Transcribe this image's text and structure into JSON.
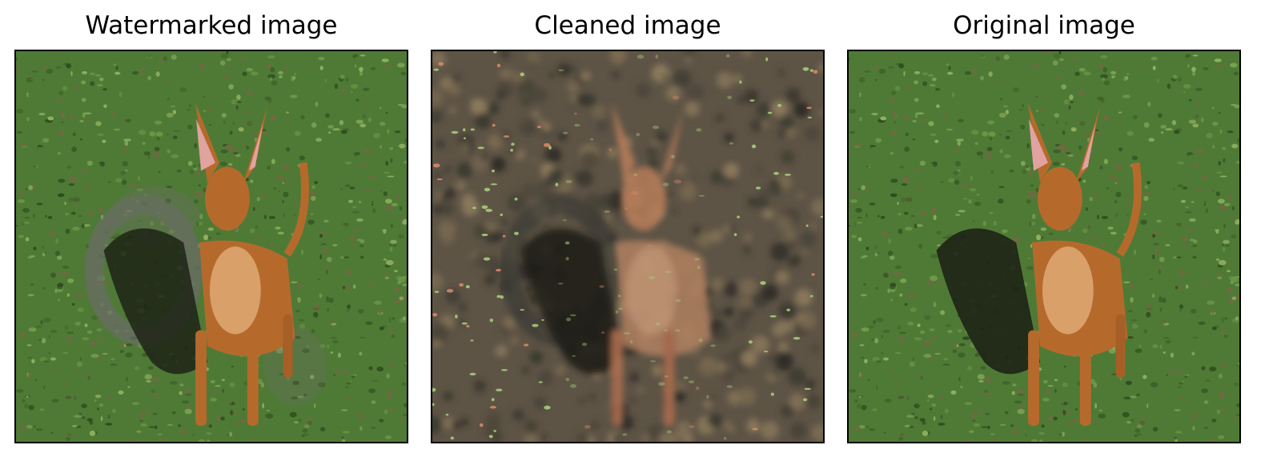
{
  "figure": {
    "panels": [
      {
        "title": "Watermarked image",
        "variant": "watermarked"
      },
      {
        "title": "Cleaned image",
        "variant": "cleaned"
      },
      {
        "title": "Original image",
        "variant": "original"
      }
    ],
    "colors": {
      "grass": "#4f7a36",
      "soil": "#7a6446",
      "dog": "#b56a2c",
      "dog_light": "#d9a06a",
      "shadow": "#1d2316",
      "watermark": "#6b6d66",
      "cleaned_base": "#5e5446",
      "speck": "#a9d47a"
    }
  }
}
